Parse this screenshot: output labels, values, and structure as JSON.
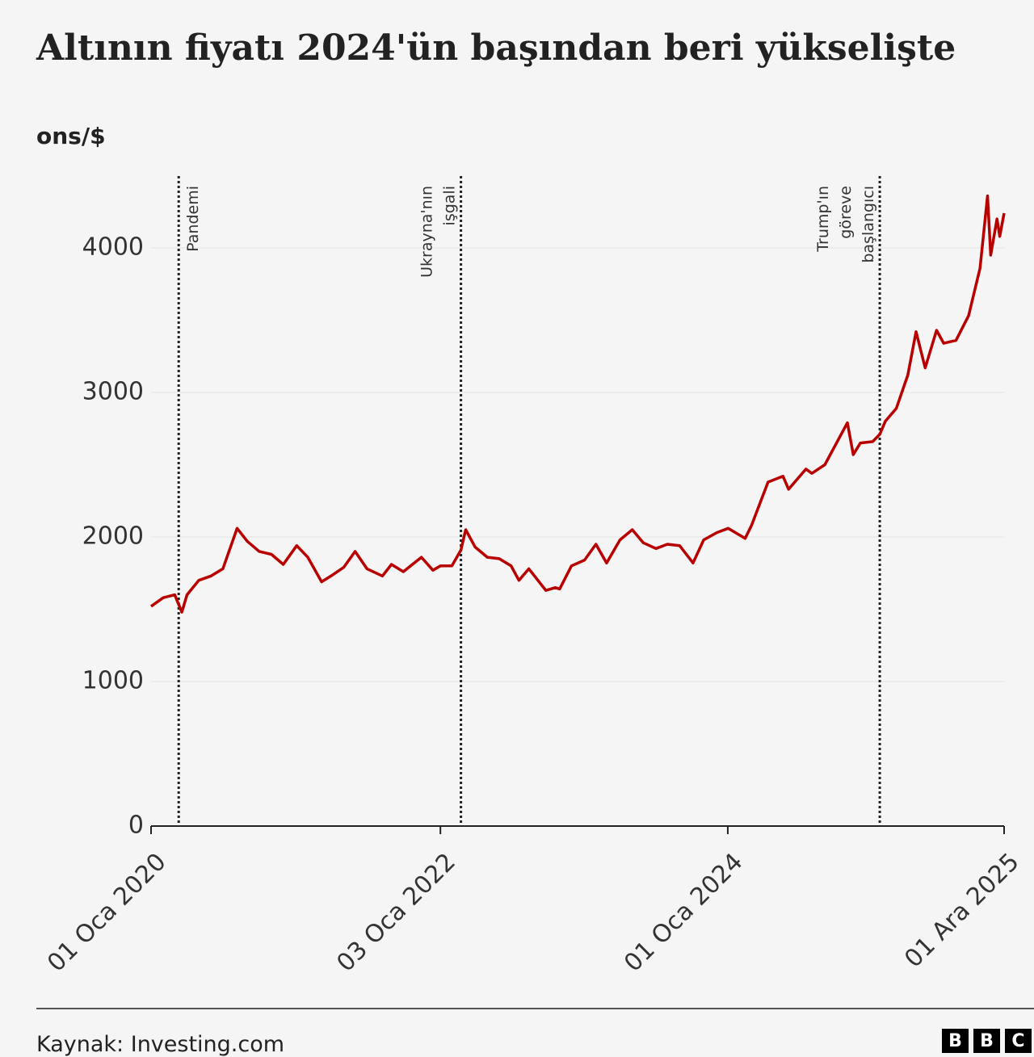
{
  "chart_data": {
    "type": "line",
    "title": "Altının fiyatı 2024'ün başından beri yükselişte",
    "y_label": "ons/$",
    "color": "#b80000",
    "grid": true,
    "x": [
      "2020-01-01",
      "2020-02-01",
      "2020-03-01",
      "2020-03-19",
      "2020-04-01",
      "2020-05-01",
      "2020-06-01",
      "2020-07-01",
      "2020-08-06",
      "2020-09-01",
      "2020-10-01",
      "2020-11-01",
      "2020-12-01",
      "2021-01-04",
      "2021-02-01",
      "2021-03-08",
      "2021-04-01",
      "2021-05-03",
      "2021-06-01",
      "2021-07-01",
      "2021-08-09",
      "2021-09-01",
      "2021-10-01",
      "2021-11-16",
      "2021-12-15",
      "2022-01-03",
      "2022-02-01",
      "2022-02-24",
      "2022-03-08",
      "2022-04-01",
      "2022-05-02",
      "2022-06-01",
      "2022-07-01",
      "2022-07-21",
      "2022-08-15",
      "2022-09-27",
      "2022-10-21",
      "2022-11-01",
      "2022-12-01",
      "2023-01-03",
      "2023-02-01",
      "2023-02-28",
      "2023-04-03",
      "2023-05-04",
      "2023-06-01",
      "2023-07-03",
      "2023-08-01",
      "2023-09-01",
      "2023-10-05",
      "2023-11-01",
      "2023-12-04",
      "2024-01-02",
      "2024-02-14",
      "2024-03-01",
      "2024-04-12",
      "2024-05-20",
      "2024-06-03",
      "2024-07-17",
      "2024-08-01",
      "2024-09-03",
      "2024-10-30",
      "2024-11-14",
      "2024-12-02",
      "2025-01-02",
      "2025-01-20",
      "2025-02-03",
      "2025-03-03",
      "2025-04-01",
      "2025-04-22",
      "2025-05-15",
      "2025-06-13",
      "2025-07-01",
      "2025-08-01",
      "2025-09-02",
      "2025-10-01",
      "2025-10-20",
      "2025-10-28",
      "2025-11-13",
      "2025-11-20",
      "2025-12-01"
    ],
    "values": [
      1520,
      1580,
      1600,
      1480,
      1600,
      1700,
      1730,
      1780,
      2060,
      1970,
      1900,
      1880,
      1810,
      1940,
      1860,
      1690,
      1730,
      1790,
      1900,
      1780,
      1730,
      1810,
      1760,
      1860,
      1770,
      1800,
      1800,
      1910,
      2050,
      1930,
      1860,
      1850,
      1800,
      1700,
      1780,
      1630,
      1650,
      1640,
      1800,
      1840,
      1950,
      1820,
      1980,
      2050,
      1960,
      1920,
      1950,
      1940,
      1820,
      1980,
      2030,
      2060,
      1990,
      2080,
      2380,
      2420,
      2330,
      2470,
      2440,
      2500,
      2790,
      2570,
      2650,
      2660,
      2710,
      2800,
      2890,
      3120,
      3420,
      3170,
      3430,
      3340,
      3360,
      3530,
      3860,
      4360,
      3950,
      4200,
      4080,
      4240
    ],
    "xlim": [
      "2020-01-01",
      "2025-12-01"
    ],
    "xticks": [
      {
        "value": "2020-01-01",
        "label": "01 Oca 2020"
      },
      {
        "value": "2022-01-03",
        "label": "03 Oca 2022"
      },
      {
        "value": "2024-01-01",
        "label": "01 Oca 2024"
      },
      {
        "value": "2025-12-01",
        "label": "01 Ara 2025"
      }
    ],
    "ylim": [
      0,
      4500
    ],
    "yticks": [
      0,
      1000,
      2000,
      3000,
      4000
    ],
    "annotations": [
      {
        "x": "2020-03-11",
        "label": [
          "Pandemi"
        ]
      },
      {
        "x": "2022-02-24",
        "label": [
          "Ukrayna'nın",
          "işgali"
        ]
      },
      {
        "x": "2025-01-20",
        "label": [
          "Trump'ın",
          "göreve",
          "başlangıcı"
        ]
      }
    ]
  },
  "source": "Kaynak: Investing.com",
  "logo": [
    "B",
    "B",
    "C"
  ]
}
